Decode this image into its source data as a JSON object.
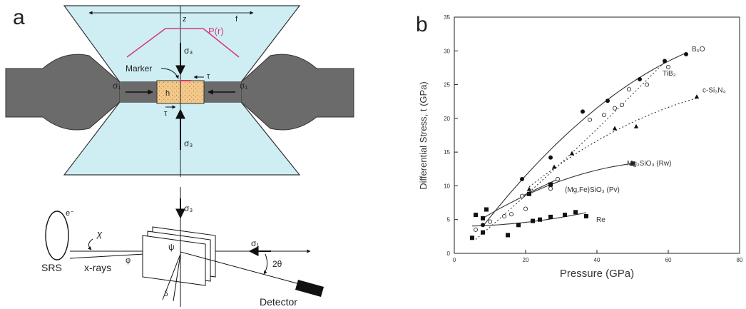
{
  "panel_a": {
    "letter": "a",
    "dim_z": "z",
    "dim_f": "f",
    "pressure_profile": "P(r)",
    "sigma_top": "σ₃",
    "sigma_bottom": "σ₃",
    "sigma_left": "σ₁",
    "sigma_right": "σ₁",
    "marker": "Marker",
    "tau_top": "τ",
    "tau_bottom": "τ",
    "height": "h",
    "sigma_beam": "σ₃",
    "sigma_detector": "σ₁",
    "electron": "e⁻",
    "srs": "SRS",
    "xrays": "x-rays",
    "chi": "χ",
    "phi": "φ",
    "psi": "ψ",
    "delta": "δ",
    "two_theta": "2θ",
    "detector": "Detector"
  },
  "panel_b": {
    "letter": "b",
    "chart_data": {
      "type": "scatter",
      "xlabel": "Pressure (GPa)",
      "ylabel": "Differential Stress, t (GPa)",
      "xlim": [
        0,
        80
      ],
      "ylim": [
        0,
        35
      ],
      "xticks": [
        0,
        20,
        40,
        60,
        80
      ],
      "yticks": [
        0,
        5,
        10,
        15,
        20,
        25,
        30,
        35
      ],
      "series": [
        {
          "name": "B₆O",
          "marker": "filled-circle",
          "line": "solid",
          "x": [
            8,
            19,
            27,
            36,
            43,
            52,
            59,
            65
          ],
          "y": [
            4.2,
            11.0,
            14.2,
            21.0,
            22.6,
            25.8,
            28.5,
            29.5
          ]
        },
        {
          "name": "TiB₂",
          "marker": "open-circle",
          "line": "dotted",
          "x": [
            6,
            10,
            14,
            16,
            20,
            27,
            38,
            42,
            45,
            47,
            49,
            54,
            60
          ],
          "y": [
            3.5,
            4.7,
            5.5,
            5.8,
            6.6,
            9.6,
            19.8,
            20.5,
            21.5,
            22.0,
            24.3,
            25.0,
            27.6
          ]
        },
        {
          "name": "c-Si₃N₄",
          "marker": "filled-triangle",
          "line": "dotted",
          "x": [
            21,
            28,
            33,
            45,
            51,
            68
          ],
          "y": [
            9.5,
            12.8,
            14.8,
            18.5,
            18.8,
            23.2
          ]
        },
        {
          "name": "Mg₂SiO₄ (Rw)",
          "marker": "filled-square",
          "line": "solid",
          "x": [
            8,
            21,
            27,
            50
          ],
          "y": [
            5.2,
            8.8,
            10.2,
            13.3
          ]
        },
        {
          "name": "(Mg,Fe)SiO₃ (Pv)",
          "marker": "open-circle",
          "line": "solid",
          "x": [
            19,
            29
          ],
          "y": [
            8.5,
            11.0
          ]
        },
        {
          "name": "Re",
          "marker": "filled-square",
          "line": "solid",
          "x": [
            5,
            6,
            8,
            9,
            15,
            18,
            22,
            24,
            27,
            31,
            34,
            37
          ],
          "y": [
            2.3,
            5.7,
            3.1,
            6.5,
            2.7,
            4.2,
            4.8,
            5.0,
            5.4,
            5.7,
            6.1,
            5.5
          ]
        }
      ]
    }
  },
  "colors": {
    "anvil_fill": "#cfeef4",
    "gasket_fill": "#6b6b6b",
    "sample_fill": "#f2c98a",
    "profile_line": "#d63a7a"
  }
}
